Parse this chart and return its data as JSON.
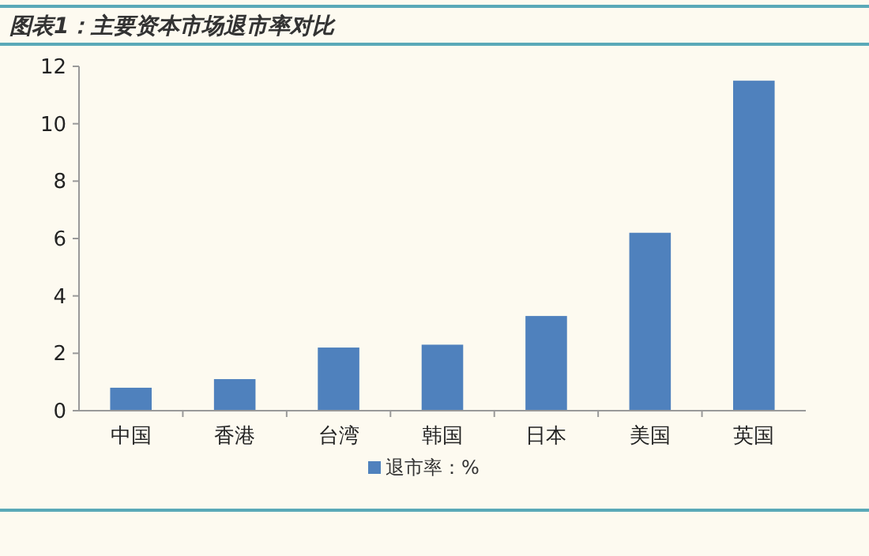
{
  "chart_data": {
    "type": "bar",
    "title": "图表1：主要资本市场退市率对比",
    "categories": [
      "中国",
      "香港",
      "台湾",
      "韩国",
      "日本",
      "美国",
      "英国"
    ],
    "series": [
      {
        "name": "退市率：%",
        "color": "#4f81bd",
        "values": [
          0.8,
          1.1,
          2.2,
          2.3,
          3.3,
          6.2,
          11.5
        ]
      }
    ],
    "ylim": [
      0,
      12
    ],
    "yticks": [
      0,
      2,
      4,
      6,
      8,
      10,
      12
    ],
    "grid": false,
    "legend": "bottom"
  }
}
